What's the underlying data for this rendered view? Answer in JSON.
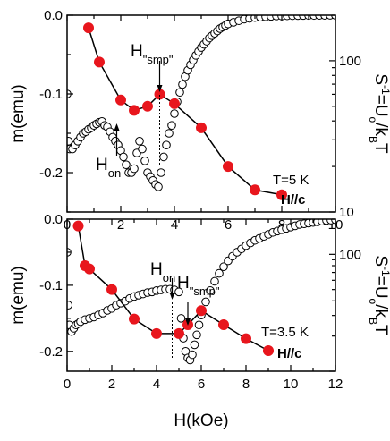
{
  "chart_data": [
    {
      "type": "scatter",
      "panel": "top",
      "xlabel": "",
      "ylabel": "m(emu)",
      "y2label": "S-1=Uo/kBT",
      "xlim": [
        0,
        10
      ],
      "ylim": [
        -0.25,
        0.0
      ],
      "y2lim": [
        10,
        200
      ],
      "y2scale": "log",
      "xticks": [
        0,
        2,
        4,
        6,
        8,
        10
      ],
      "yticks": [
        0.0,
        -0.1,
        -0.2
      ],
      "y2ticks": [
        10,
        100
      ],
      "grid": false,
      "conditions": [
        "T=5 K",
        "H//c"
      ],
      "annotations": {
        "h_smp": {
          "base": "H",
          "sub": "\"smp\"",
          "x": 3.45
        },
        "h_on": {
          "base": "H",
          "sub": "on",
          "x": 1.85
        }
      },
      "series": [
        {
          "marker": "open-circle",
          "axis": "left",
          "x": [
            0.0,
            0.05,
            0.1,
            0.2,
            0.3,
            0.4,
            0.5,
            0.6,
            0.7,
            0.8,
            0.9,
            1.0,
            1.1,
            1.2,
            1.3,
            1.4,
            1.5,
            1.6,
            1.7,
            1.8,
            1.9,
            2.0,
            2.1,
            2.2,
            2.3,
            2.4,
            2.5,
            2.6,
            2.7,
            2.8,
            2.9,
            3.0,
            3.1,
            3.2,
            3.3,
            3.4,
            3.5,
            3.6,
            3.7,
            3.8,
            3.9,
            4.0,
            4.1,
            4.2,
            4.3,
            4.4,
            4.5,
            4.6,
            4.7,
            4.8,
            4.9,
            5.0,
            5.1,
            5.2,
            5.3,
            5.4,
            5.5,
            5.6,
            5.7,
            5.8,
            5.9,
            6.0,
            6.2,
            6.4,
            6.6,
            6.8,
            7.0,
            7.2,
            7.4,
            7.6,
            7.8,
            8.0,
            8.2,
            8.4,
            8.6,
            8.8,
            9.0,
            9.2,
            9.4,
            9.6,
            9.8,
            10.0
          ],
          "y": [
            -0.1,
            -0.16,
            -0.17,
            -0.17,
            -0.165,
            -0.16,
            -0.155,
            -0.15,
            -0.148,
            -0.145,
            -0.143,
            -0.14,
            -0.138,
            -0.136,
            -0.135,
            -0.14,
            -0.142,
            -0.148,
            -0.155,
            -0.16,
            -0.165,
            -0.172,
            -0.18,
            -0.19,
            -0.2,
            -0.2,
            -0.195,
            -0.175,
            -0.16,
            -0.17,
            -0.185,
            -0.2,
            -0.205,
            -0.21,
            -0.215,
            -0.218,
            -0.2,
            -0.18,
            -0.165,
            -0.15,
            -0.14,
            -0.125,
            -0.11,
            -0.098,
            -0.088,
            -0.078,
            -0.07,
            -0.063,
            -0.057,
            -0.051,
            -0.046,
            -0.041,
            -0.037,
            -0.033,
            -0.029,
            -0.026,
            -0.023,
            -0.02,
            -0.017,
            -0.015,
            -0.013,
            -0.011,
            -0.009,
            -0.007,
            -0.005,
            -0.004,
            -0.003,
            -0.0025,
            -0.002,
            -0.0015,
            -0.001,
            -0.001,
            -0.0008,
            -0.0006,
            -0.0005,
            -0.0004,
            -0.0003,
            -0.0003,
            -0.0002,
            -0.0002,
            -0.0001,
            -0.0001
          ]
        },
        {
          "marker": "filled-circle",
          "color": "#e8161d",
          "axis": "right",
          "connected": true,
          "x": [
            0.8,
            1.2,
            2.0,
            2.5,
            3.0,
            3.45,
            4.0,
            5.0,
            6.0,
            7.0,
            8.0
          ],
          "y": [
            165,
            98,
            55,
            47,
            50,
            60,
            52,
            36,
            20,
            14,
            13
          ]
        }
      ]
    },
    {
      "type": "scatter",
      "panel": "bottom",
      "xlabel": "H(kOe)",
      "ylabel": "m(emu)",
      "y2label": "S-1=Uo/kBT",
      "xlim": [
        0,
        12
      ],
      "ylim": [
        -0.23,
        0.0
      ],
      "y2lim": [
        10,
        200
      ],
      "y2scale": "log",
      "xticks": [
        0,
        2,
        4,
        6,
        8,
        10,
        12
      ],
      "yticks": [
        0.0,
        -0.1,
        -0.2
      ],
      "y2ticks": [
        100
      ],
      "grid": false,
      "conditions": [
        "T=3.5 K",
        "H//c"
      ],
      "annotations": {
        "h_on": {
          "base": "H",
          "sub": "on",
          "x": 4.7
        },
        "h_smp": {
          "base": "H",
          "sub": "\"smp\"",
          "x": 5.4
        }
      },
      "series": [
        {
          "marker": "open-circle",
          "axis": "left",
          "x": [
            0.0,
            0.05,
            0.1,
            0.2,
            0.3,
            0.4,
            0.5,
            0.6,
            0.8,
            1.0,
            1.2,
            1.4,
            1.6,
            1.8,
            2.0,
            2.2,
            2.4,
            2.6,
            2.8,
            3.0,
            3.2,
            3.4,
            3.6,
            3.8,
            4.0,
            4.2,
            4.4,
            4.6,
            4.8,
            5.0,
            5.1,
            5.2,
            5.3,
            5.4,
            5.5,
            5.6,
            5.7,
            5.8,
            5.9,
            6.0,
            6.2,
            6.4,
            6.6,
            6.8,
            7.0,
            7.2,
            7.4,
            7.6,
            7.8,
            8.0,
            8.2,
            8.4,
            8.6,
            8.8,
            9.0,
            9.2,
            9.4,
            9.6,
            9.8,
            10.0,
            10.2,
            10.4,
            10.6,
            10.8,
            11.0,
            11.2,
            11.4,
            11.6,
            11.8,
            12.0
          ],
          "y": [
            -0.05,
            -0.13,
            -0.16,
            -0.17,
            -0.165,
            -0.16,
            -0.158,
            -0.155,
            -0.152,
            -0.15,
            -0.148,
            -0.145,
            -0.142,
            -0.138,
            -0.135,
            -0.13,
            -0.127,
            -0.124,
            -0.12,
            -0.117,
            -0.115,
            -0.113,
            -0.111,
            -0.11,
            -0.108,
            -0.107,
            -0.106,
            -0.106,
            -0.107,
            -0.11,
            -0.15,
            -0.18,
            -0.2,
            -0.21,
            -0.213,
            -0.205,
            -0.19,
            -0.175,
            -0.16,
            -0.145,
            -0.125,
            -0.108,
            -0.094,
            -0.082,
            -0.072,
            -0.063,
            -0.056,
            -0.05,
            -0.045,
            -0.04,
            -0.036,
            -0.032,
            -0.029,
            -0.026,
            -0.023,
            -0.02,
            -0.018,
            -0.016,
            -0.014,
            -0.012,
            -0.01,
            -0.008,
            -0.007,
            -0.006,
            -0.005,
            -0.004,
            -0.003,
            -0.002,
            -0.0015,
            -0.001
          ]
        },
        {
          "marker": "filled-circle",
          "color": "#e8161d",
          "axis": "right",
          "connected": true,
          "x": [
            0.5,
            0.8,
            1.0,
            2.0,
            3.0,
            4.0,
            5.0,
            5.4,
            6.0,
            7.0,
            8.0,
            9.0
          ],
          "y": [
            175,
            80,
            75,
            50,
            28,
            21,
            21,
            25,
            33,
            25,
            19,
            15
          ]
        }
      ]
    }
  ]
}
